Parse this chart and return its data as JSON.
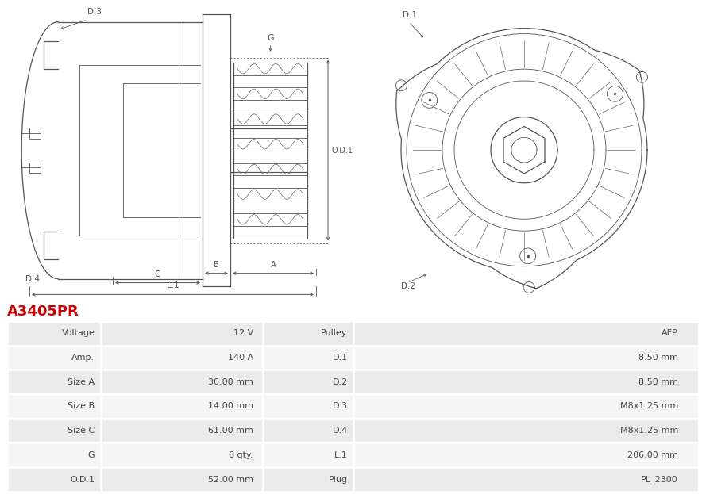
{
  "title": "A3405PR",
  "title_color": "#cc0000",
  "bg_color": "#ffffff",
  "table_rows": [
    [
      "Voltage",
      "12 V",
      "Pulley",
      "AFP"
    ],
    [
      "Amp.",
      "140 A",
      "D.1",
      "8.50 mm"
    ],
    [
      "Size A",
      "30.00 mm",
      "D.2",
      "8.50 mm"
    ],
    [
      "Size B",
      "14.00 mm",
      "D.3",
      "M8x1.25 mm"
    ],
    [
      "Size C",
      "61.00 mm",
      "D.4",
      "M8x1.25 mm"
    ],
    [
      "G",
      "6 qty.",
      "L.1",
      "206.00 mm"
    ],
    [
      "O.D.1",
      "52.00 mm",
      "Plug",
      "PL_2300"
    ]
  ],
  "line_color": "#555555",
  "dim_color": "#555555",
  "label_color": "#333333",
  "row_bg_even": "#ebebeb",
  "row_bg_odd": "#f5f5f5",
  "border_color": "#ffffff",
  "text_color": "#444444",
  "font_size": 8.0
}
